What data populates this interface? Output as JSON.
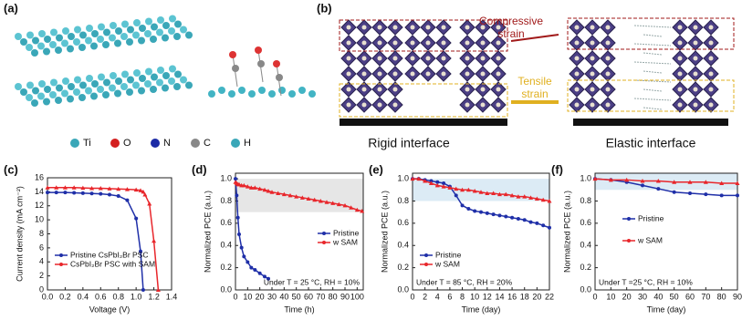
{
  "panel_a": {
    "label": "(a)",
    "legend": [
      "Ti",
      "O",
      "N",
      "C",
      "H"
    ]
  },
  "panel_b": {
    "label": "(b)",
    "compressive": [
      "Compressive",
      "strain"
    ],
    "tensile": [
      "Tensile",
      "strain"
    ],
    "rigid": "Rigid interface",
    "elastic": "Elastic interface"
  },
  "chart_data": [
    {
      "type": "line",
      "panel": "(c)",
      "x_label": "Voltage (V)",
      "y_label": "Current density (mA cm⁻²)",
      "legend": "lower left",
      "x": [
        0,
        0.1,
        0.2,
        0.3,
        0.4,
        0.5,
        0.6,
        0.7,
        0.8,
        0.9,
        1.0,
        1.05,
        1.08,
        1.1,
        1.15,
        1.2,
        1.25
      ],
      "series": [
        {
          "name": "Pristine CsPbI₂Br PSC",
          "color": "#1f2fa8",
          "values": [
            13.9,
            13.9,
            13.9,
            13.85,
            13.8,
            13.75,
            13.7,
            13.6,
            13.4,
            12.8,
            10.2,
            5.5,
            0,
            null,
            null,
            null,
            null
          ]
        },
        {
          "name": "CsPbI₂Br PSC with SAM",
          "color": "#e8262b",
          "values": [
            14.6,
            14.6,
            14.6,
            14.6,
            14.55,
            14.5,
            14.5,
            14.45,
            14.4,
            14.35,
            14.3,
            14.2,
            14.0,
            13.6,
            12.3,
            7,
            0
          ]
        }
      ],
      "xlim": [
        0,
        1.4
      ],
      "xticks": [
        {
          "value": 0,
          "label": "0.0"
        },
        {
          "value": 0.2,
          "label": "0.2"
        },
        {
          "value": 0.4,
          "label": "0.4"
        },
        {
          "value": 0.6,
          "label": "0.6"
        },
        {
          "value": 0.8,
          "label": "0.8"
        },
        {
          "value": 1.0,
          "label": "1.0"
        },
        {
          "value": 1.2,
          "label": "1.2"
        },
        {
          "value": 1.4,
          "label": "1.4"
        }
      ],
      "ylim": [
        0,
        16
      ],
      "yticks": [
        0,
        2,
        4,
        6,
        8,
        10,
        12,
        14,
        16
      ]
    },
    {
      "type": "line",
      "panel": "(d)",
      "x_label": "Time (h)",
      "y_label": "Normalized PCE (a.u.)",
      "legend": "lower right",
      "annotation": "Under T = 25 °C, RH = 10%",
      "highlight": [
        0.7,
        1.0
      ],
      "highlight_color": "#e6e6e6",
      "x": [
        0,
        1,
        2,
        3,
        5,
        7,
        10,
        13,
        16,
        20,
        24,
        27,
        30,
        35,
        40,
        45,
        50,
        55,
        60,
        65,
        70,
        75,
        80,
        85,
        90,
        95,
        100,
        104
      ],
      "series": [
        {
          "name": "Pristine",
          "color": "#1f2fa8",
          "values": [
            1.0,
            0.85,
            0.65,
            0.5,
            0.38,
            0.3,
            0.25,
            0.2,
            0.18,
            0.15,
            0.12,
            0.1,
            null,
            null,
            null,
            null,
            null,
            null,
            null,
            null,
            null,
            null,
            null,
            null,
            null,
            null,
            null,
            null
          ]
        },
        {
          "name": "w SAM",
          "color": "#e8262b",
          "values": [
            0.97,
            0.96,
            0.95,
            0.95,
            0.94,
            0.94,
            0.93,
            0.92,
            0.92,
            0.91,
            0.9,
            0.89,
            0.88,
            0.87,
            0.86,
            0.85,
            0.84,
            0.83,
            0.82,
            0.81,
            0.8,
            0.79,
            0.78,
            0.77,
            0.76,
            0.74,
            0.72,
            0.71
          ]
        }
      ],
      "xlim": [
        0,
        105
      ],
      "xticks": [
        0,
        10,
        20,
        30,
        40,
        50,
        60,
        70,
        80,
        90,
        100
      ],
      "ylim": [
        0,
        1.05
      ],
      "yticks": [
        {
          "value": 0,
          "label": "0.0"
        },
        {
          "value": 0.2,
          "label": "0.2"
        },
        {
          "value": 0.4,
          "label": "0.4"
        },
        {
          "value": 0.6,
          "label": "0.6"
        },
        {
          "value": 0.8,
          "label": "0.8"
        },
        {
          "value": 1.0,
          "label": "1.0"
        }
      ]
    },
    {
      "type": "line",
      "panel": "(e)",
      "x_label": "Time (day)",
      "y_label": "Normalized PCE (a.u.)",
      "legend": "lower left",
      "annotation": "Under T = 85 °C, RH = 20%",
      "highlight": [
        0.8,
        1.0
      ],
      "highlight_color": "#dcebf5",
      "x": [
        0,
        1,
        2,
        3,
        4,
        5,
        6,
        7,
        8,
        9,
        10,
        11,
        12,
        13,
        14,
        15,
        16,
        17,
        18,
        19,
        20,
        21,
        22
      ],
      "series": [
        {
          "name": "Pristine",
          "color": "#1f2fa8",
          "values": [
            1.0,
            1.0,
            0.99,
            0.98,
            0.97,
            0.96,
            0.93,
            0.85,
            0.76,
            0.73,
            0.71,
            0.7,
            0.69,
            0.68,
            0.67,
            0.66,
            0.65,
            0.64,
            0.63,
            0.61,
            0.6,
            0.58,
            0.56
          ]
        },
        {
          "name": "w SAM",
          "color": "#e8262b",
          "values": [
            1.0,
            1.0,
            0.98,
            0.96,
            0.94,
            0.93,
            0.92,
            0.91,
            0.9,
            0.9,
            0.89,
            0.88,
            0.87,
            0.87,
            0.86,
            0.86,
            0.85,
            0.84,
            0.84,
            0.83,
            0.82,
            0.81,
            0.8
          ]
        }
      ],
      "xlim": [
        0,
        22
      ],
      "xticks": [
        0,
        2,
        4,
        6,
        8,
        10,
        12,
        14,
        16,
        18,
        20,
        22
      ],
      "ylim": [
        0,
        1.05
      ],
      "yticks": [
        {
          "value": 0,
          "label": "0.0"
        },
        {
          "value": 0.2,
          "label": "0.2"
        },
        {
          "value": 0.4,
          "label": "0.4"
        },
        {
          "value": 0.6,
          "label": "0.6"
        },
        {
          "value": 0.8,
          "label": "0.8"
        },
        {
          "value": 1.0,
          "label": "1.0"
        }
      ]
    },
    {
      "type": "line",
      "panel": "(f)",
      "x_label": "Time (day)",
      "y_label": "Normalized PCE (a.u.)",
      "legend": "center",
      "annotation": "Under T =25 °C, RH = 10%",
      "highlight": [
        0.9,
        1.05
      ],
      "highlight_color": "#dcebf5",
      "x": [
        0,
        10,
        20,
        30,
        40,
        50,
        60,
        70,
        80,
        90
      ],
      "series": [
        {
          "name": "Pristine",
          "color": "#1f2fa8",
          "values": [
            1.0,
            0.99,
            0.97,
            0.94,
            0.91,
            0.88,
            0.87,
            0.86,
            0.85,
            0.85
          ]
        },
        {
          "name": "w SAM",
          "color": "#e8262b",
          "values": [
            1.0,
            0.99,
            0.99,
            0.98,
            0.98,
            0.97,
            0.97,
            0.97,
            0.96,
            0.96
          ]
        }
      ],
      "xlim": [
        0,
        90
      ],
      "xticks": [
        0,
        10,
        20,
        30,
        40,
        50,
        60,
        70,
        80,
        90
      ],
      "ylim": [
        0,
        1.05
      ],
      "yticks": [
        {
          "value": 0,
          "label": "0.0"
        },
        {
          "value": 0.2,
          "label": "0.2"
        },
        {
          "value": 0.4,
          "label": "0.4"
        },
        {
          "value": 0.6,
          "label": "0.6"
        },
        {
          "value": 0.8,
          "label": "0.8"
        },
        {
          "value": 1.0,
          "label": "1.0"
        }
      ]
    }
  ]
}
